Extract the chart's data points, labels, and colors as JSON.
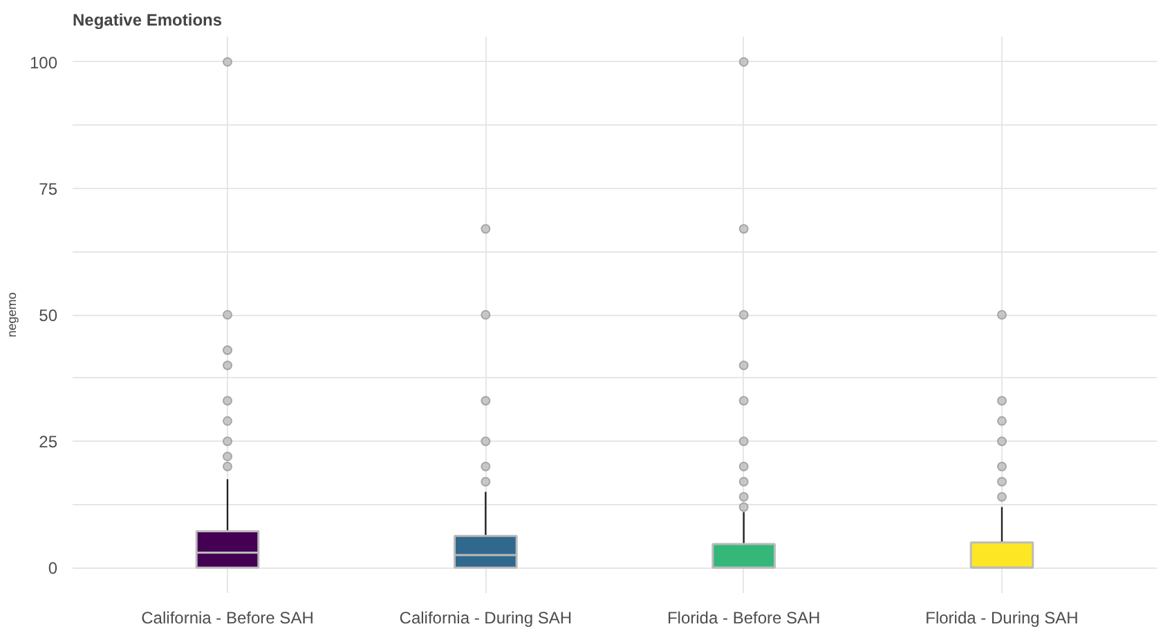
{
  "chart_data": {
    "type": "box",
    "title": "Negative Emotions",
    "ylabel": "negemo",
    "categories": [
      "California - Before SAH",
      "California - During SAH",
      "Florida - Before SAH",
      "Florida - During SAH"
    ],
    "colors": [
      "#440154",
      "#31688e",
      "#35b779",
      "#fde725"
    ],
    "boxes": [
      {
        "q1": 0,
        "median": 3,
        "q3": 7.2,
        "high": 17.5,
        "outliers": [
          20,
          22,
          25,
          29,
          33,
          40,
          43,
          50,
          100
        ]
      },
      {
        "q1": 0,
        "median": 2.5,
        "q3": 6.3,
        "high": 15,
        "outliers": [
          17,
          20,
          25,
          33,
          50,
          67
        ]
      },
      {
        "q1": 0,
        "median": 0,
        "q3": 4.7,
        "high": 11,
        "outliers": [
          12,
          14,
          17,
          20,
          25,
          33,
          40,
          50,
          67,
          100
        ]
      },
      {
        "q1": 0,
        "median": 0,
        "q3": 5,
        "high": 12,
        "outliers": [
          14,
          17,
          20,
          25,
          29,
          33,
          50
        ]
      }
    ],
    "ylim": [
      -5,
      105
    ],
    "yticks": [
      0,
      {
        "value": 12.5,
        "label": null
      },
      25,
      {
        "value": 37.5,
        "label": null
      },
      50,
      {
        "value": 62.5,
        "label": null
      },
      75,
      {
        "value": 87.5,
        "label": null
      },
      100
    ],
    "grid": true
  }
}
